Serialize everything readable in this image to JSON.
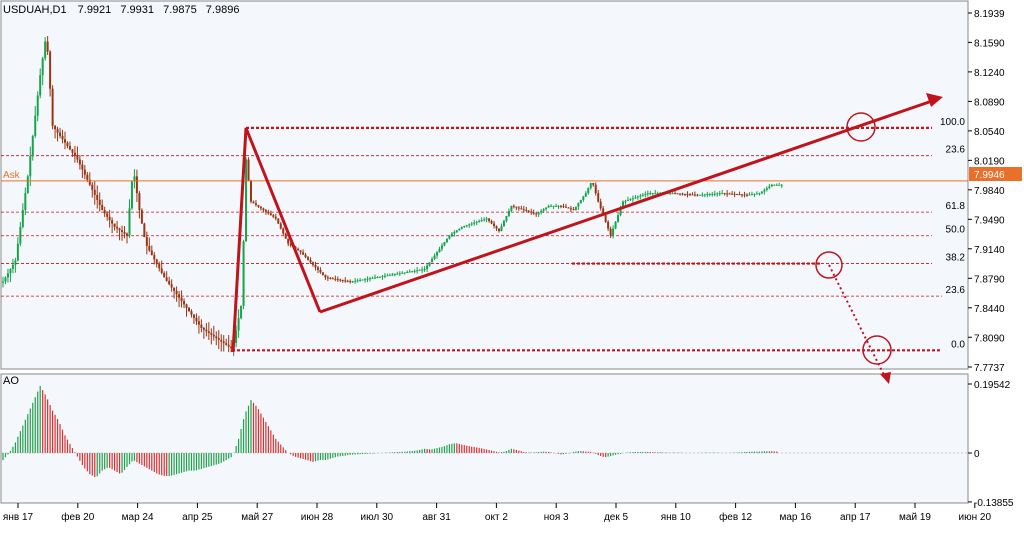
{
  "chart_data": {
    "type": "candlestick",
    "symbol": "USDUAH,D1",
    "ohlc": {
      "open": "7.9921",
      "high": "7.9931",
      "low": "7.9875",
      "close": "7.9896"
    },
    "ask_label": "Ask",
    "ask_price": "7.9946",
    "ask_value": 7.9946,
    "price_ticks": [
      "8.1939",
      "8.1590",
      "8.1240",
      "8.0890",
      "8.0540",
      "8.0190",
      "7.9840",
      "7.9490",
      "7.9140",
      "7.8790",
      "7.8440",
      "7.8090",
      "7.7737"
    ],
    "x_ticks": [
      "янв 17",
      "фев 20",
      "мар 24",
      "апр 25",
      "май 27",
      "июн 28",
      "июл 30",
      "авг 31",
      "окт 2",
      "ноя 3",
      "дек 5",
      "янв 10",
      "фев 12",
      "мар 16",
      "апр 17",
      "май 19",
      "июн 20"
    ],
    "fib_upper": {
      "levels": [
        "100.0",
        "23.6",
        "61.8",
        "50.0",
        "38.2"
      ],
      "values": [
        8.0575,
        8.0245,
        7.9575,
        7.9295,
        7.8965
      ]
    },
    "fib_lower": {
      "levels": [
        "23.6",
        "0.0"
      ],
      "values": [
        7.8578,
        7.7935
      ]
    },
    "price_path": [
      {
        "w": 0,
        "p": 7.875
      },
      {
        "w": 2,
        "p": 7.9
      },
      {
        "w": 4,
        "p": 8.0
      },
      {
        "w": 6,
        "p": 8.12
      },
      {
        "w": 7,
        "p": 8.17
      },
      {
        "w": 8,
        "p": 8.06
      },
      {
        "w": 10,
        "p": 8.04
      },
      {
        "w": 12,
        "p": 8.02
      },
      {
        "w": 14,
        "p": 7.99
      },
      {
        "w": 16,
        "p": 7.96
      },
      {
        "w": 18,
        "p": 7.94
      },
      {
        "w": 20,
        "p": 7.93
      },
      {
        "w": 21,
        "p": 8.01
      },
      {
        "w": 22,
        "p": 7.96
      },
      {
        "w": 23,
        "p": 7.92
      },
      {
        "w": 26,
        "p": 7.88
      },
      {
        "w": 29,
        "p": 7.85
      },
      {
        "w": 32,
        "p": 7.82
      },
      {
        "w": 35,
        "p": 7.805
      },
      {
        "w": 37,
        "p": 7.795
      },
      {
        "w": 38.5,
        "p": 7.85
      },
      {
        "w": 39.2,
        "p": 8.02
      },
      {
        "w": 40,
        "p": 7.97
      },
      {
        "w": 42,
        "p": 7.96
      },
      {
        "w": 44,
        "p": 7.95
      },
      {
        "w": 46,
        "p": 7.92
      },
      {
        "w": 48,
        "p": 7.91
      },
      {
        "w": 50,
        "p": 7.895
      },
      {
        "w": 52,
        "p": 7.88
      },
      {
        "w": 56,
        "p": 7.875
      },
      {
        "w": 60,
        "p": 7.88
      },
      {
        "w": 64,
        "p": 7.885
      },
      {
        "w": 68,
        "p": 7.89
      },
      {
        "w": 70,
        "p": 7.91
      },
      {
        "w": 72,
        "p": 7.93
      },
      {
        "w": 74,
        "p": 7.94
      },
      {
        "w": 76,
        "p": 7.945
      },
      {
        "w": 78,
        "p": 7.95
      },
      {
        "w": 80,
        "p": 7.935
      },
      {
        "w": 82,
        "p": 7.965
      },
      {
        "w": 84,
        "p": 7.96
      },
      {
        "w": 86,
        "p": 7.955
      },
      {
        "w": 88,
        "p": 7.965
      },
      {
        "w": 90,
        "p": 7.965
      },
      {
        "w": 92,
        "p": 7.96
      },
      {
        "w": 94,
        "p": 7.98
      },
      {
        "w": 95,
        "p": 7.995
      },
      {
        "w": 96,
        "p": 7.97
      },
      {
        "w": 98,
        "p": 7.93
      },
      {
        "w": 100,
        "p": 7.97
      },
      {
        "w": 102,
        "p": 7.975
      },
      {
        "w": 104,
        "p": 7.98
      },
      {
        "w": 108,
        "p": 7.98
      },
      {
        "w": 112,
        "p": 7.978
      },
      {
        "w": 116,
        "p": 7.98
      },
      {
        "w": 120,
        "p": 7.978
      },
      {
        "w": 122,
        "p": 7.98
      },
      {
        "w": 124,
        "p": 7.99
      },
      {
        "w": 126,
        "p": 7.99
      }
    ],
    "ao_panel": {
      "title": "AO",
      "ticks": [
        "0.19542",
        "0",
        "-0.13855"
      ],
      "tick_values": [
        0.19542,
        0,
        -0.13855
      ],
      "bars": [
        {
          "w": 0,
          "v": -0.02
        },
        {
          "w": 1,
          "v": 0.0
        },
        {
          "w": 2,
          "v": 0.03
        },
        {
          "w": 3,
          "v": 0.07
        },
        {
          "w": 4,
          "v": 0.11
        },
        {
          "w": 5,
          "v": 0.15
        },
        {
          "w": 6,
          "v": 0.19
        },
        {
          "w": 7,
          "v": 0.16
        },
        {
          "w": 8,
          "v": 0.12
        },
        {
          "w": 9,
          "v": 0.09
        },
        {
          "w": 10,
          "v": 0.05
        },
        {
          "w": 11,
          "v": 0.02
        },
        {
          "w": 12,
          "v": -0.01
        },
        {
          "w": 13,
          "v": -0.04
        },
        {
          "w": 14,
          "v": -0.06
        },
        {
          "w": 15,
          "v": -0.07
        },
        {
          "w": 16,
          "v": -0.05
        },
        {
          "w": 17,
          "v": -0.04
        },
        {
          "w": 18,
          "v": -0.05
        },
        {
          "w": 19,
          "v": -0.06
        },
        {
          "w": 20,
          "v": -0.04
        },
        {
          "w": 21,
          "v": -0.02
        },
        {
          "w": 22,
          "v": -0.03
        },
        {
          "w": 23,
          "v": -0.04
        },
        {
          "w": 24,
          "v": -0.05
        },
        {
          "w": 25,
          "v": -0.06
        },
        {
          "w": 26,
          "v": -0.065
        },
        {
          "w": 27,
          "v": -0.065
        },
        {
          "w": 28,
          "v": -0.06
        },
        {
          "w": 29,
          "v": -0.055
        },
        {
          "w": 30,
          "v": -0.05
        },
        {
          "w": 31,
          "v": -0.05
        },
        {
          "w": 32,
          "v": -0.045
        },
        {
          "w": 33,
          "v": -0.04
        },
        {
          "w": 34,
          "v": -0.035
        },
        {
          "w": 35,
          "v": -0.03
        },
        {
          "w": 36,
          "v": -0.02
        },
        {
          "w": 37,
          "v": -0.01
        },
        {
          "w": 38,
          "v": 0.04
        },
        {
          "w": 39,
          "v": 0.11
        },
        {
          "w": 40,
          "v": 0.15
        },
        {
          "w": 41,
          "v": 0.13
        },
        {
          "w": 42,
          "v": 0.1
        },
        {
          "w": 43,
          "v": 0.07
        },
        {
          "w": 44,
          "v": 0.04
        },
        {
          "w": 45,
          "v": 0.02
        },
        {
          "w": 46,
          "v": 0.0
        },
        {
          "w": 47,
          "v": -0.01
        },
        {
          "w": 48,
          "v": -0.015
        },
        {
          "w": 49,
          "v": -0.02
        },
        {
          "w": 50,
          "v": -0.025
        },
        {
          "w": 51,
          "v": -0.02
        },
        {
          "w": 52,
          "v": -0.02
        },
        {
          "w": 53,
          "v": -0.015
        },
        {
          "w": 54,
          "v": -0.01
        },
        {
          "w": 55,
          "v": -0.008
        },
        {
          "w": 56,
          "v": -0.005
        },
        {
          "w": 57,
          "v": -0.004
        },
        {
          "w": 58,
          "v": -0.003
        },
        {
          "w": 59,
          "v": -0.002
        },
        {
          "w": 60,
          "v": -0.001
        },
        {
          "w": 61,
          "v": 0.0
        },
        {
          "w": 62,
          "v": 0.001
        },
        {
          "w": 63,
          "v": 0.002
        },
        {
          "w": 64,
          "v": 0.003
        },
        {
          "w": 65,
          "v": 0.004
        },
        {
          "w": 66,
          "v": 0.006
        },
        {
          "w": 67,
          "v": 0.008
        },
        {
          "w": 68,
          "v": 0.012
        },
        {
          "w": 69,
          "v": 0.01
        },
        {
          "w": 70,
          "v": 0.014
        },
        {
          "w": 71,
          "v": 0.018
        },
        {
          "w": 72,
          "v": 0.025
        },
        {
          "w": 73,
          "v": 0.028
        },
        {
          "w": 74,
          "v": 0.024
        },
        {
          "w": 75,
          "v": 0.02
        },
        {
          "w": 76,
          "v": 0.017
        },
        {
          "w": 77,
          "v": 0.014
        },
        {
          "w": 78,
          "v": 0.01
        },
        {
          "w": 79,
          "v": 0.006
        },
        {
          "w": 80,
          "v": 0.002
        },
        {
          "w": 81,
          "v": 0.004
        },
        {
          "w": 82,
          "v": 0.012
        },
        {
          "w": 83,
          "v": 0.008
        },
        {
          "w": 84,
          "v": 0.003
        },
        {
          "w": 85,
          "v": 0.001
        },
        {
          "w": 86,
          "v": 0.002
        },
        {
          "w": 87,
          "v": 0.004
        },
        {
          "w": 88,
          "v": 0.003
        },
        {
          "w": 89,
          "v": 0.0
        },
        {
          "w": 90,
          "v": -0.004
        },
        {
          "w": 91,
          "v": -0.002
        },
        {
          "w": 92,
          "v": 0.003
        },
        {
          "w": 93,
          "v": 0.006
        },
        {
          "w": 94,
          "v": 0.004
        },
        {
          "w": 95,
          "v": 0.003
        },
        {
          "w": 96,
          "v": -0.006
        },
        {
          "w": 97,
          "v": -0.012
        },
        {
          "w": 98,
          "v": -0.009
        },
        {
          "w": 99,
          "v": -0.004
        },
        {
          "w": 100,
          "v": -0.001
        },
        {
          "w": 101,
          "v": 0.002
        },
        {
          "w": 102,
          "v": 0.003
        },
        {
          "w": 103,
          "v": 0.003
        },
        {
          "w": 104,
          "v": 0.003
        },
        {
          "w": 105,
          "v": 0.002
        },
        {
          "w": 106,
          "v": 0.002
        },
        {
          "w": 107,
          "v": 0.001
        },
        {
          "w": 108,
          "v": 0.001
        },
        {
          "w": 109,
          "v": 0.001
        },
        {
          "w": 110,
          "v": 0.0
        },
        {
          "w": 111,
          "v": 0.0
        },
        {
          "w": 112,
          "v": 0.0
        },
        {
          "w": 113,
          "v": 0.001
        },
        {
          "w": 114,
          "v": 0.001
        },
        {
          "w": 115,
          "v": 0.001
        },
        {
          "w": 116,
          "v": 0.0
        },
        {
          "w": 117,
          "v": 0.0
        },
        {
          "w": 118,
          "v": 0.001
        },
        {
          "w": 119,
          "v": 0.002
        },
        {
          "w": 120,
          "v": 0.003
        },
        {
          "w": 121,
          "v": 0.004
        },
        {
          "w": 122,
          "v": 0.004
        },
        {
          "w": 123,
          "v": 0.005
        },
        {
          "w": 124,
          "v": 0.005
        },
        {
          "w": 125,
          "v": 0.004
        }
      ]
    },
    "colors": {
      "background": "#ffffff",
      "plot": "#f4f8fc",
      "grid": "#000000",
      "bull": "#16a34a",
      "bear": "#9a3412",
      "ao_up": "#22a04b",
      "ao_down": "#d93030",
      "ask": "#e8702a",
      "annotation": "#c0141c",
      "fib": "#c0141c"
    }
  }
}
